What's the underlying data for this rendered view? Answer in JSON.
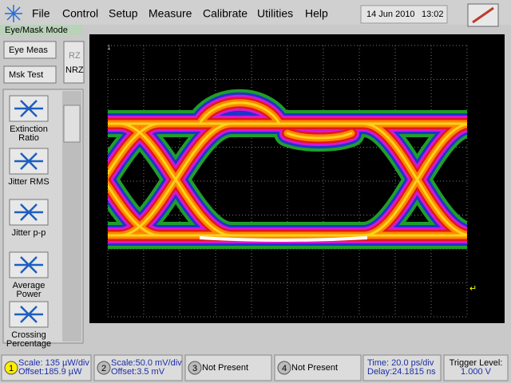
{
  "menu": {
    "items": [
      "File",
      "Control",
      "Setup",
      "Measure",
      "Calibrate",
      "Utilities",
      "Help"
    ]
  },
  "status": {
    "date": "14 Jun 2010",
    "time": "13:02"
  },
  "mode_label": "Eye/Mask Mode",
  "buttons": {
    "eye_meas": "Eye Meas",
    "msk_test": "Msk Test",
    "rz": "RZ",
    "nrz": "NRZ"
  },
  "sidebar": {
    "items": [
      [
        "Extinction",
        "Ratio"
      ],
      [
        "Jitter RMS"
      ],
      [
        "Jitter p-p"
      ],
      [
        "Average",
        "Power"
      ],
      [
        "Crossing",
        "Percentage"
      ]
    ]
  },
  "footer": {
    "channels": [
      {
        "number": "1",
        "lines": [
          "Scale: 135 µW/div",
          "Offset:185.9 µW"
        ]
      },
      {
        "number": "2",
        "lines": [
          "Scale:50.0 mV/div",
          "Offset:3.5 mV"
        ]
      },
      {
        "number": "3",
        "lines": [
          "Not Present"
        ]
      },
      {
        "number": "4",
        "lines": [
          "Not Present"
        ]
      }
    ],
    "time": [
      "Time: 20.0 ps/div",
      "Delay:24.1815 ns"
    ],
    "trigger": [
      "Trigger Level:",
      "1.000 V"
    ]
  }
}
